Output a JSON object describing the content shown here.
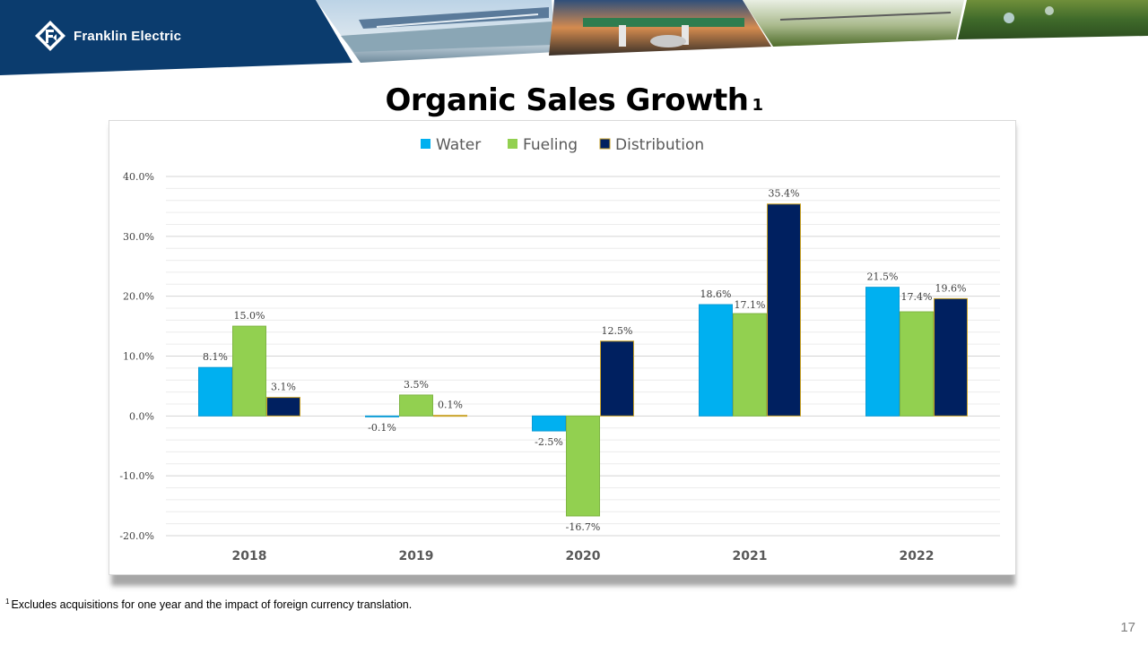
{
  "brand": {
    "name": "Franklin Electric",
    "primary_color": "#0b3c6e"
  },
  "slide": {
    "title": "Organic Sales Growth",
    "title_note": "1",
    "footnote_mark": "1",
    "footnote": "Excludes acquisitions for one year and the impact of foreign currency translation.",
    "page_number": "17"
  },
  "header_photos": [
    "water-treatment-photo",
    "fuel-station-photo",
    "irrigation-field-photo",
    "sprinkler-photo"
  ],
  "chart_data": {
    "type": "bar",
    "title": "",
    "xlabel": "",
    "ylabel": "",
    "categories": [
      "2018",
      "2019",
      "2020",
      "2021",
      "2022"
    ],
    "series": [
      {
        "name": "Water",
        "color": "#00b0f0",
        "values": [
          8.1,
          -0.1,
          -2.5,
          18.6,
          21.5
        ],
        "labels": [
          "8.1%",
          "-0.1%",
          "-2.5%",
          "18.6%",
          "21.5%"
        ]
      },
      {
        "name": "Fueling",
        "color": "#92d050",
        "values": [
          15.0,
          3.5,
          -16.7,
          17.1,
          17.4
        ],
        "labels": [
          "15.0%",
          "3.5%",
          "-16.7%",
          "17.1%",
          "17.4%"
        ]
      },
      {
        "name": "Distribution",
        "color": "#002060",
        "values": [
          3.1,
          0.1,
          12.5,
          35.4,
          19.6
        ],
        "labels": [
          "3.1%",
          "0.1%",
          "12.5%",
          "35.4%",
          "19.6%"
        ]
      }
    ],
    "ylim": [
      -20,
      40
    ],
    "yticks": [
      40,
      30,
      20,
      10,
      0,
      -10,
      -20
    ],
    "ytick_labels": [
      "40.0%",
      "30.0%",
      "20.0%",
      "10.0%",
      "0.0%",
      "-10.0%",
      "-20.0%"
    ],
    "grid": true,
    "legend_position": "top-center"
  }
}
